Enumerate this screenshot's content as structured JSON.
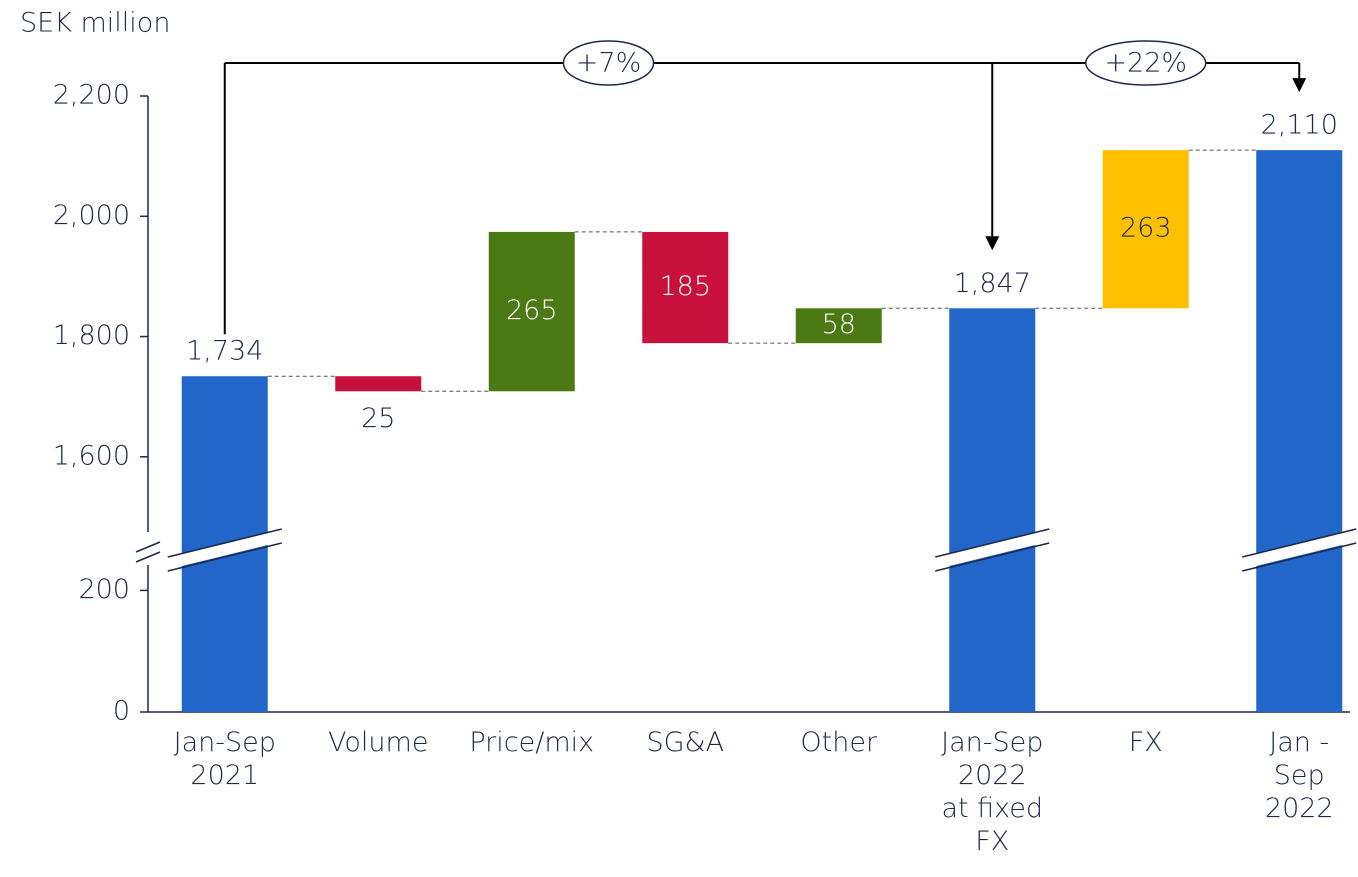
{
  "chart_data": {
    "type": "waterfall",
    "ylabel": "SEK million",
    "categories": [
      "Jan-Sep\n2021",
      "Volume",
      "Price/mix",
      "SG&A",
      "Other",
      "Jan-Sep\n2022\nat fixed\nFX",
      "FX",
      "Jan -\nSep\n2022"
    ],
    "measure": [
      "absolute",
      "relative",
      "relative",
      "relative",
      "relative",
      "absolute",
      "relative",
      "absolute"
    ],
    "values": [
      1734,
      -25,
      265,
      -185,
      58,
      1847,
      263,
      2110
    ],
    "value_labels": [
      "1,734",
      "25",
      "265",
      "185",
      "58",
      "1,847",
      "263",
      "2,110"
    ],
    "colors": [
      "#2166c8",
      "#c8103c",
      "#4b7a14",
      "#c8103c",
      "#4b7a14",
      "#2166c8",
      "#ffc000",
      "#2166c8"
    ],
    "ylim": [
      0,
      2200
    ],
    "ybreak": [
      250,
      1470
    ],
    "yticks": [
      0,
      200,
      {
        "value": 1600,
        "label": "1,600"
      },
      {
        "value": 1800,
        "label": "1,800"
      },
      {
        "value": 2000,
        "label": "2,000"
      },
      {
        "value": 2200,
        "label": "2,200"
      }
    ],
    "growth_labels": [
      "+7%",
      "+22%"
    ]
  }
}
